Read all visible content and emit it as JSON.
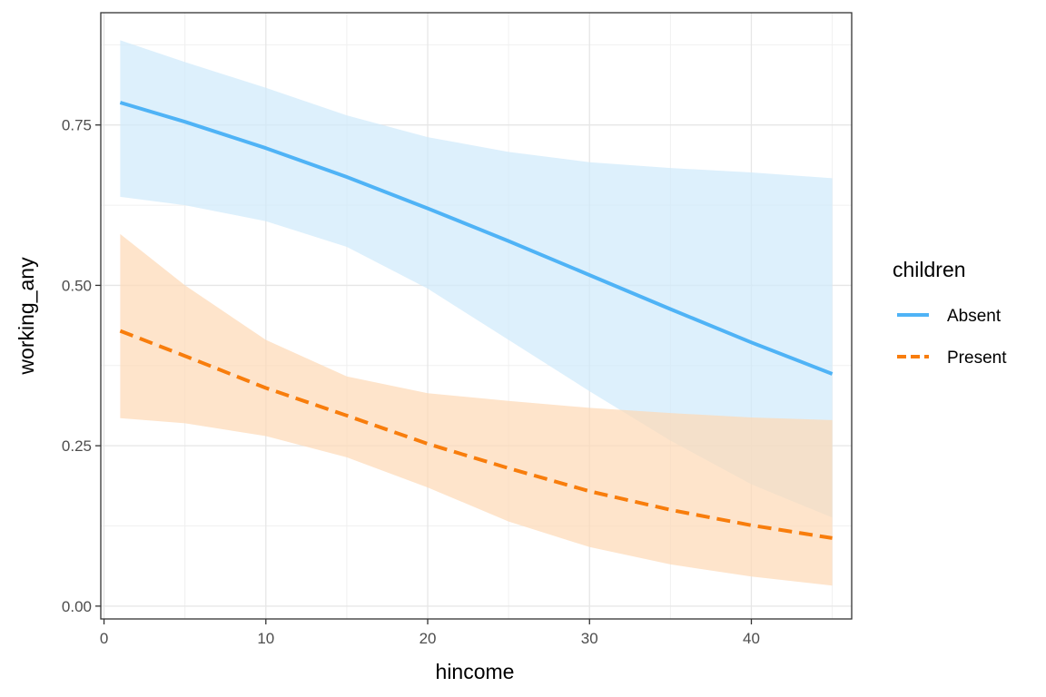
{
  "chart_data": {
    "type": "line",
    "xlabel": "hincome",
    "ylabel": "working_any",
    "xlim": [
      -0.2,
      46.2
    ],
    "ylim": [
      -0.02,
      0.925
    ],
    "xticks": [
      0,
      10,
      20,
      30,
      40
    ],
    "xtick_labels": [
      "0",
      "10",
      "20",
      "30",
      "40"
    ],
    "yticks": [
      0.0,
      0.25,
      0.5,
      0.75
    ],
    "ytick_labels": [
      "0.00",
      "0.25",
      "0.50",
      "0.75"
    ],
    "grid": true,
    "legend": {
      "title": "children",
      "position": "right"
    },
    "series": [
      {
        "name": "Absent",
        "color": "#4fb3f6",
        "fill": "#cfe9fb",
        "dash": "solid",
        "x": [
          1,
          5,
          10,
          15,
          20,
          25,
          30,
          35,
          40,
          45
        ],
        "y": [
          0.785,
          0.755,
          0.714,
          0.669,
          0.62,
          0.569,
          0.516,
          0.463,
          0.411,
          0.362
        ],
        "lower": [
          0.638,
          0.625,
          0.6,
          0.56,
          0.495,
          0.415,
          0.335,
          0.258,
          0.19,
          0.138
        ],
        "upper": [
          0.882,
          0.848,
          0.808,
          0.765,
          0.731,
          0.708,
          0.692,
          0.683,
          0.676,
          0.667
        ]
      },
      {
        "name": "Present",
        "color": "#f87d0c",
        "fill": "#fdd8b5",
        "dash": "dashed",
        "x": [
          1,
          5,
          10,
          15,
          20,
          25,
          30,
          35,
          40,
          45
        ],
        "y": [
          0.429,
          0.39,
          0.34,
          0.297,
          0.253,
          0.215,
          0.179,
          0.15,
          0.126,
          0.106
        ],
        "lower": [
          0.293,
          0.285,
          0.265,
          0.232,
          0.185,
          0.132,
          0.092,
          0.065,
          0.046,
          0.032
        ],
        "upper": [
          0.58,
          0.5,
          0.415,
          0.358,
          0.332,
          0.32,
          0.309,
          0.301,
          0.294,
          0.29
        ]
      }
    ]
  }
}
